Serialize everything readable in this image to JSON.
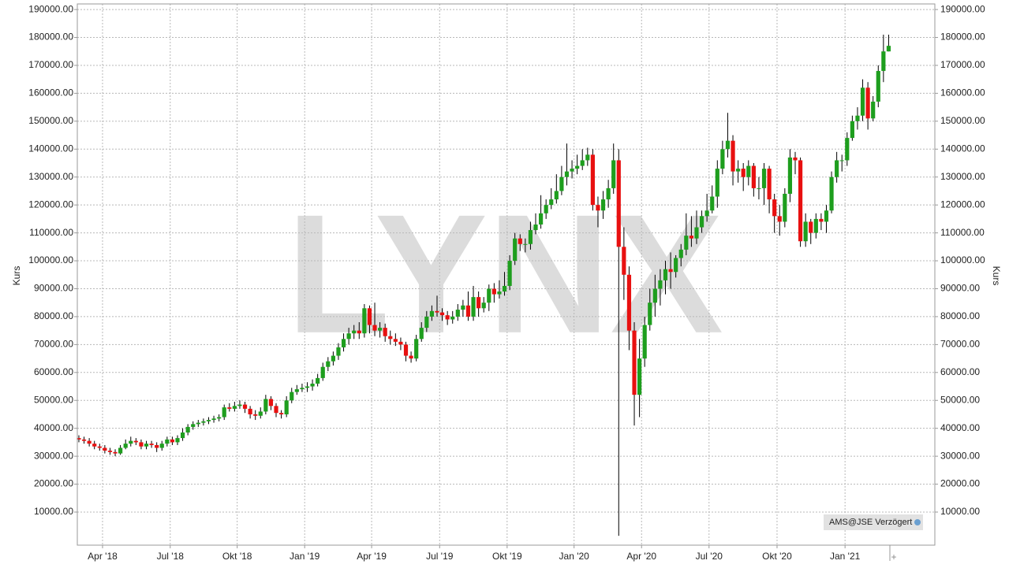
{
  "chart_data": {
    "type": "candlestick",
    "y_axis_label": "Kurs",
    "watermark": "LYNX",
    "source_label": "AMS@JSE Verzögert",
    "up_color": "#1e9e1e",
    "down_color": "#e81010",
    "grid": true,
    "xlim": [
      -0.3,
      164.9
    ],
    "xticks": [
      {
        "value": 4.56,
        "label": "Apr '18"
      },
      {
        "value": 17.6,
        "label": "Jul '18"
      },
      {
        "value": 30.5,
        "label": "Okt '18"
      },
      {
        "value": 43.5,
        "label": "Jan '19"
      },
      {
        "value": 56.4,
        "label": "Apr '19"
      },
      {
        "value": 69.5,
        "label": "Jul '19"
      },
      {
        "value": 82.5,
        "label": "Okt '19"
      },
      {
        "value": 95.4,
        "label": "Jan '20"
      },
      {
        "value": 108.4,
        "label": "Apr '20"
      },
      {
        "value": 121.4,
        "label": "Jul '20"
      },
      {
        "value": 134.5,
        "label": "Okt '20"
      },
      {
        "value": 147.6,
        "label": "Jan '21"
      }
    ],
    "ylim": [
      -1850,
      192000
    ],
    "yticks": [
      {
        "value": 10000,
        "label": "10000.00"
      },
      {
        "value": 20000,
        "label": "20000.00"
      },
      {
        "value": 30000,
        "label": "30000.00"
      },
      {
        "value": 40000,
        "label": "40000.00"
      },
      {
        "value": 50000,
        "label": "50000.00"
      },
      {
        "value": 60000,
        "label": "60000.00"
      },
      {
        "value": 70000,
        "label": "70000.00"
      },
      {
        "value": 80000,
        "label": "80000.00"
      },
      {
        "value": 90000,
        "label": "90000.00"
      },
      {
        "value": 100000,
        "label": "100000.00"
      },
      {
        "value": 110000,
        "label": "110000.00"
      },
      {
        "value": 120000,
        "label": "120000.00"
      },
      {
        "value": 130000,
        "label": "130000.00"
      },
      {
        "value": 140000,
        "label": "140000.00"
      },
      {
        "value": 150000,
        "label": "150000.00"
      },
      {
        "value": 160000,
        "label": "160000.00"
      },
      {
        "value": 170000,
        "label": "170000.00"
      },
      {
        "value": 180000,
        "label": "180000.00"
      },
      {
        "value": 190000,
        "label": "190000.00"
      }
    ],
    "open": [
      36500,
      36000,
      35500,
      34500,
      33500,
      33000,
      32000,
      31500,
      31000,
      33000,
      34500,
      35500,
      35000,
      33500,
      34500,
      34000,
      33000,
      34500,
      36000,
      35000,
      36500,
      38500,
      40500,
      41500,
      42000,
      42500,
      43000,
      43500,
      44000,
      47500,
      47000,
      48000,
      48500,
      47000,
      45000,
      44500,
      46000,
      50500,
      48000,
      45500,
      45000,
      50000,
      53000,
      54000,
      54500,
      55000,
      56000,
      58000,
      62000,
      64000,
      66000,
      69000,
      72000,
      74000,
      75000,
      74000,
      83000,
      77000,
      75000,
      76000,
      73000,
      72000,
      71000,
      70000,
      66000,
      65000,
      72000,
      76000,
      80000,
      82000,
      81500,
      80500,
      79000,
      80000,
      82500,
      84000,
      80000,
      87000,
      83000,
      85000,
      90000,
      88000,
      89000,
      91000,
      100000,
      108000,
      106000,
      106000,
      111000,
      113000,
      117000,
      120000,
      122000,
      125000,
      130000,
      132000,
      133000,
      134000,
      136000,
      138000,
      120000,
      118000,
      122000,
      126000,
      136000,
      105000,
      95000,
      75000,
      52000,
      65000,
      77000,
      85000,
      90000,
      93000,
      97000,
      96000,
      101000,
      104000,
      109000,
      108000,
      112000,
      116000,
      118000,
      123000,
      133000,
      140000,
      143000,
      132000,
      133000,
      130000,
      134000,
      126000,
      126000,
      133000,
      122000,
      116000,
      114000,
      124000,
      137000,
      136000,
      107000,
      114000,
      110000,
      115000,
      114000,
      118000,
      130000,
      136000,
      136000,
      144000,
      150000,
      152000,
      162000,
      151000,
      157000,
      168000,
      175000
    ],
    "high": [
      37500,
      37000,
      36500,
      35500,
      34500,
      34000,
      33000,
      32500,
      34000,
      36000,
      37000,
      36500,
      36000,
      35500,
      35500,
      35000,
      35500,
      37000,
      37000,
      37500,
      40000,
      41500,
      42500,
      43000,
      43500,
      44000,
      44500,
      45000,
      48500,
      49000,
      49500,
      50000,
      49500,
      48000,
      46500,
      47500,
      52000,
      51500,
      49000,
      46500,
      51500,
      54500,
      55500,
      56000,
      56500,
      57500,
      59500,
      63500,
      65500,
      67500,
      70500,
      74000,
      76000,
      77000,
      78000,
      84500,
      84000,
      85000,
      78000,
      77500,
      75000,
      74000,
      72500,
      71000,
      67500,
      73500,
      78000,
      82000,
      84000,
      87500,
      83000,
      82000,
      82000,
      84500,
      86000,
      89000,
      91000,
      89000,
      87000,
      91500,
      92000,
      93000,
      96000,
      102000,
      110000,
      109500,
      108000,
      114000,
      117000,
      123500,
      122000,
      126000,
      131000,
      134000,
      142000,
      136000,
      138000,
      140000,
      140500,
      140000,
      123000,
      125000,
      129000,
      142000,
      140000,
      112000,
      98000,
      78000,
      72000,
      80000,
      90000,
      95000,
      97000,
      100000,
      103000,
      102000,
      106000,
      117000,
      116000,
      118000,
      118000,
      124000,
      127000,
      136000,
      143000,
      153000,
      145000,
      136000,
      135000,
      136000,
      135000,
      130000,
      135000,
      134000,
      124000,
      120000,
      126000,
      140000,
      139000,
      137000,
      117000,
      115000,
      117000,
      117000,
      120000,
      132000,
      139000,
      138000,
      146000,
      152000,
      155000,
      165000,
      164000,
      159000,
      170000,
      181000,
      181000
    ],
    "low": [
      35000,
      34500,
      33500,
      32500,
      32000,
      31000,
      30500,
      30000,
      30500,
      32500,
      33500,
      34000,
      32500,
      32500,
      33000,
      31500,
      32000,
      33500,
      34000,
      34000,
      35500,
      37500,
      39500,
      40500,
      41000,
      41500,
      42000,
      42500,
      43000,
      46000,
      46000,
      47000,
      45500,
      43500,
      43000,
      43500,
      45000,
      46500,
      44000,
      43500,
      44000,
      49000,
      52000,
      53000,
      53000,
      53500,
      55000,
      57000,
      60500,
      62500,
      64500,
      67500,
      70000,
      72000,
      72000,
      72500,
      74000,
      73000,
      72500,
      71000,
      70000,
      69500,
      68000,
      64000,
      63500,
      64000,
      71000,
      74500,
      78500,
      80000,
      78500,
      77000,
      77500,
      78500,
      80000,
      78500,
      78500,
      80000,
      81500,
      82000,
      85000,
      86500,
      87500,
      89500,
      98500,
      103500,
      103000,
      104000,
      109500,
      111500,
      115000,
      118500,
      120500,
      123500,
      127000,
      129500,
      131000,
      132500,
      134000,
      118000,
      112000,
      115000,
      119000,
      124000,
      1500,
      86000,
      68000,
      41000,
      44000,
      62000,
      75000,
      80000,
      84000,
      88000,
      90000,
      94000,
      98000,
      102000,
      105000,
      106000,
      110000,
      114000,
      117000,
      119000,
      131000,
      137000,
      127000,
      128000,
      125000,
      127000,
      123000,
      122000,
      120000,
      117000,
      110000,
      109000,
      112000,
      121000,
      131000,
      105000,
      105000,
      106000,
      108000,
      111000,
      110000,
      117000,
      128000,
      132000,
      134000,
      143000,
      147000,
      150000,
      147000,
      150000,
      155000,
      164000,
      175000
    ],
    "close": [
      36000,
      35500,
      34500,
      33500,
      33000,
      32000,
      31500,
      31000,
      33000,
      34500,
      35500,
      35000,
      33500,
      34500,
      34000,
      33000,
      34500,
      36000,
      35000,
      36500,
      38500,
      40500,
      41500,
      42000,
      42500,
      43000,
      43500,
      44000,
      47500,
      47000,
      48000,
      48500,
      47000,
      45000,
      44500,
      46000,
      50500,
      48000,
      45500,
      45000,
      50000,
      53000,
      54000,
      54500,
      55000,
      56000,
      58000,
      62000,
      64000,
      66000,
      69000,
      72000,
      74000,
      75000,
      74000,
      83000,
      77000,
      75000,
      76000,
      73000,
      72000,
      71000,
      70000,
      66000,
      65000,
      72000,
      76000,
      80000,
      82000,
      81500,
      80500,
      79000,
      80000,
      82500,
      84000,
      80000,
      87000,
      83000,
      85000,
      90000,
      88000,
      89000,
      91000,
      100000,
      108000,
      106000,
      106000,
      111000,
      113000,
      117000,
      120000,
      122000,
      125000,
      130000,
      132000,
      133000,
      134000,
      136000,
      138000,
      120000,
      118000,
      122000,
      126000,
      136000,
      105000,
      95000,
      75000,
      52000,
      65000,
      77000,
      85000,
      90000,
      93000,
      97000,
      96000,
      101000,
      104000,
      109000,
      108000,
      112000,
      116000,
      118000,
      123000,
      133000,
      140000,
      143000,
      132000,
      133000,
      130000,
      134000,
      126000,
      126000,
      133000,
      122000,
      116000,
      114000,
      124000,
      137000,
      136000,
      107000,
      114000,
      110000,
      115000,
      114000,
      118000,
      130000,
      136000,
      136000,
      144000,
      150000,
      152000,
      162000,
      151000,
      157000,
      168000,
      175000,
      177000
    ]
  }
}
